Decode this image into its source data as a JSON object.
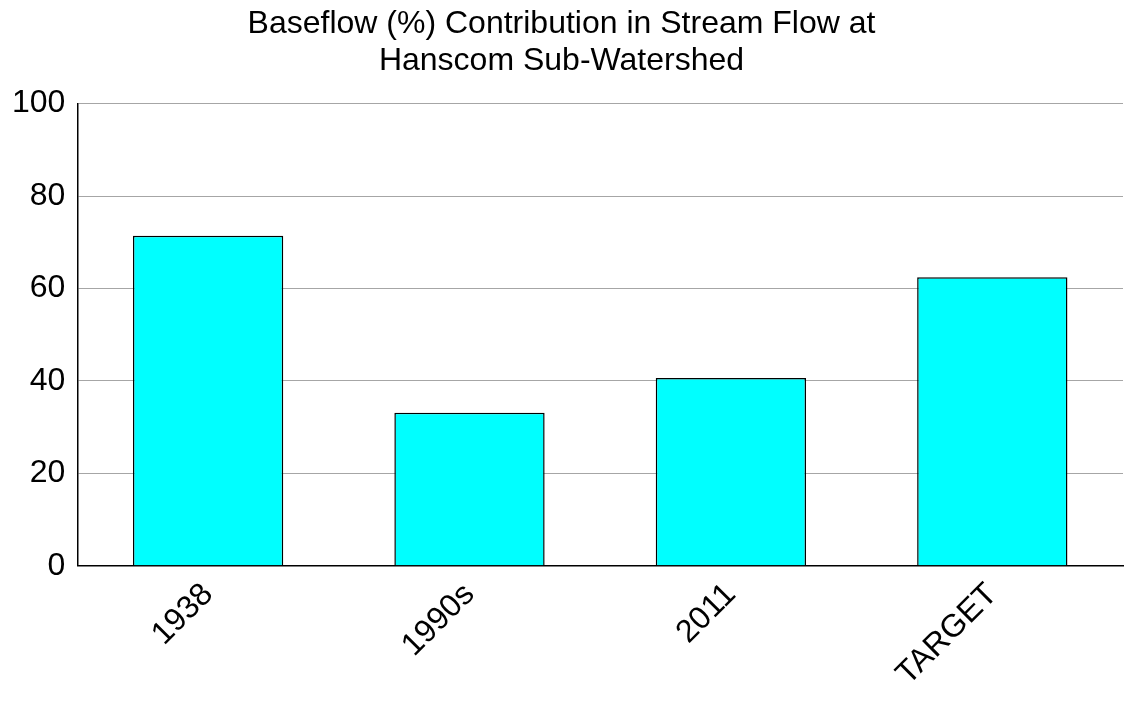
{
  "chart_data": {
    "type": "bar",
    "title": "Baseflow (%) Contribution in Stream Flow at Hanscom Sub-Watershed",
    "categories": [
      "1938",
      "1990s",
      "2011",
      "TARGET"
    ],
    "values": [
      71.4,
      33.1,
      40.6,
      62.4
    ],
    "color": "#00ffff",
    "ylim": [
      0,
      100
    ],
    "yticks": [
      0,
      20,
      40,
      60,
      80,
      100
    ],
    "grid": "y"
  }
}
